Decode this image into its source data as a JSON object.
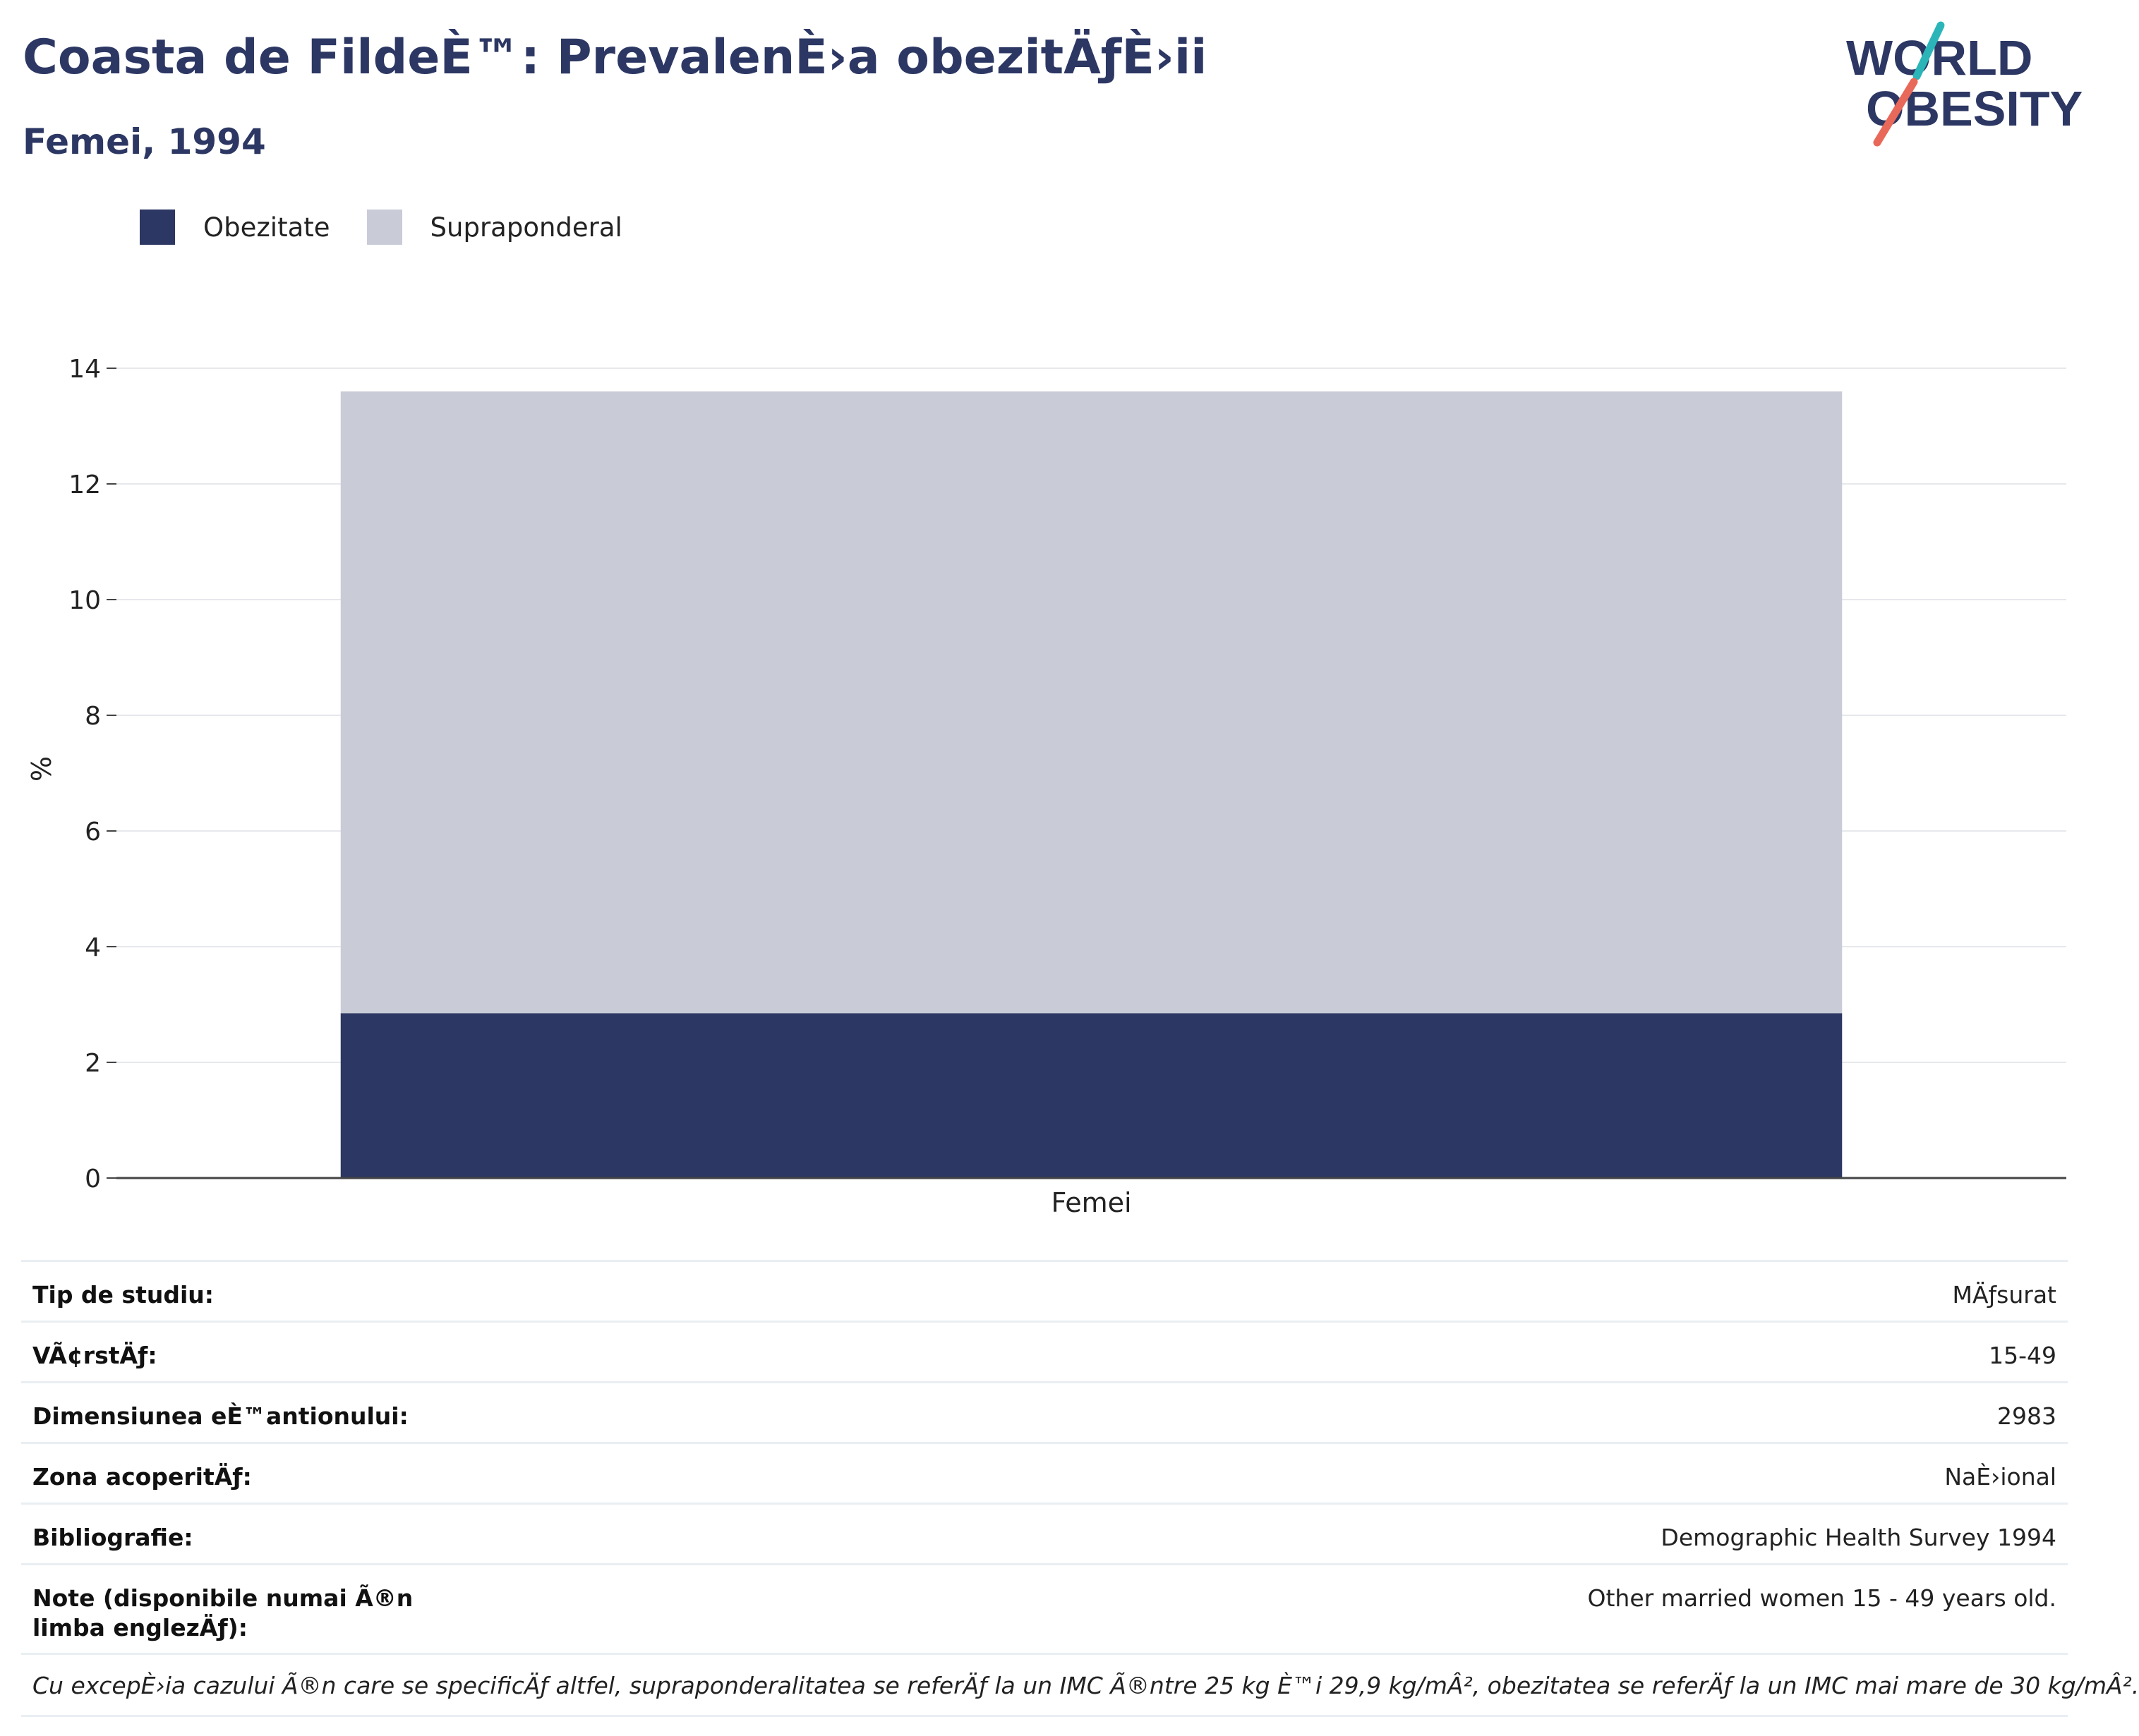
{
  "header": {
    "title": "Coasta de FildeÈ™: PrevalenÈ›a obezitÄƒÈ›ii",
    "subtitle": "Femei, 1994"
  },
  "logo": {
    "line1": "WORLD",
    "line2": "OBESITY",
    "accent_colors": [
      "#2bb5b8",
      "#e8685a"
    ]
  },
  "legend": {
    "items": [
      {
        "label": "Obezitate",
        "color": "#2c3763"
      },
      {
        "label": "Supraponderal",
        "color": "#c9ccd7"
      }
    ]
  },
  "chart_data": {
    "type": "bar",
    "stacked": true,
    "categories": [
      "Femei"
    ],
    "series": [
      {
        "name": "Obezitate",
        "values": [
          2.85
        ],
        "color": "#2c3763"
      },
      {
        "name": "Supraponderal",
        "values": [
          10.75
        ],
        "color": "#c9ccd7"
      }
    ],
    "title": "Coasta de FildeÈ™: PrevalenÈ›a obezitÄƒÈ›ii",
    "subtitle": "Femei, 1994",
    "ylabel": "%",
    "xlabel": "",
    "ylim": [
      0,
      14
    ],
    "yticks": [
      0,
      2,
      4,
      6,
      8,
      10,
      12,
      14
    ],
    "grid": true,
    "legend_position": "top-left"
  },
  "info": {
    "rows": [
      {
        "label": "Tip de studiu:",
        "value": "MÄƒsurat"
      },
      {
        "label": "VÃ¢rstÄƒ:",
        "value": "15-49"
      },
      {
        "label": "Dimensiunea eÈ™antionului:",
        "value": "2983"
      },
      {
        "label": "Zona acoperitÄƒ:",
        "value": "NaÈ›ional"
      },
      {
        "label": "Bibliografie:",
        "value": "Demographic Health Survey 1994"
      },
      {
        "label": "Note (disponibile numai Ã®n limba englezÄƒ):",
        "value": "Other married women 15 - 49 years old."
      }
    ],
    "footnote": "Cu excepÈ›ia cazului Ã®n care se specificÄƒ altfel, supraponderalitatea se referÄƒ la un IMC Ã®ntre 25 kg È™i 29,9 kg/mÂ², obezitatea se referÄƒ la un IMC mai mare de 30 kg/mÂ²."
  }
}
